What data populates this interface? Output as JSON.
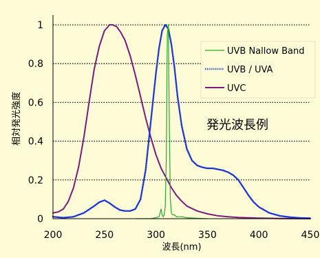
{
  "chart_data": {
    "type": "line",
    "title": "",
    "xlabel": "波長(nm)",
    "ylabel": "相対発光強度",
    "xlim": [
      200,
      450
    ],
    "ylim": [
      0,
      1.05
    ],
    "x_ticks": [
      200,
      250,
      300,
      350,
      400,
      450
    ],
    "y_ticks": [
      0,
      0.2,
      0.4,
      0.6,
      0.8,
      1
    ],
    "x_tick_labels": [
      "200",
      "250",
      "300",
      "350",
      "400",
      "450"
    ],
    "y_tick_labels": [
      "0",
      "0.2",
      "0.4",
      "0.6",
      "0.8",
      "1"
    ],
    "grid": "horizontal dotted",
    "legend_position": "top-right",
    "annotation": "発光波長例",
    "series": [
      {
        "name": "UVB Nallow Band",
        "color": "#2aa82a",
        "style": "solid",
        "x": [
          280,
          295,
          300,
          303,
          305,
          306,
          307,
          308,
          309,
          310,
          311,
          312,
          313,
          314,
          315,
          316,
          318,
          320,
          325,
          330,
          340,
          350
        ],
        "y": [
          0,
          0,
          0.005,
          0.01,
          0.05,
          0.02,
          0.01,
          0.02,
          0.06,
          0.3,
          0.95,
          1.0,
          0.5,
          0.1,
          0.03,
          0.02,
          0.02,
          0.01,
          0.01,
          0.005,
          0.002,
          0
        ]
      },
      {
        "name": "UVB / UVA",
        "color": "#1e36d4",
        "style": "dotted",
        "x": [
          200,
          210,
          220,
          230,
          240,
          245,
          250,
          255,
          260,
          265,
          270,
          275,
          280,
          285,
          290,
          295,
          300,
          303,
          306,
          309,
          312,
          315,
          318,
          321,
          325,
          330,
          335,
          340,
          345,
          350,
          355,
          360,
          365,
          370,
          375,
          380,
          385,
          390,
          395,
          400,
          410,
          420,
          430,
          440,
          450
        ],
        "y": [
          0.01,
          0.005,
          0.01,
          0.03,
          0.065,
          0.085,
          0.095,
          0.08,
          0.06,
          0.045,
          0.04,
          0.04,
          0.05,
          0.1,
          0.25,
          0.5,
          0.75,
          0.88,
          0.97,
          1.0,
          0.98,
          0.9,
          0.78,
          0.63,
          0.48,
          0.36,
          0.3,
          0.275,
          0.265,
          0.26,
          0.26,
          0.255,
          0.25,
          0.24,
          0.225,
          0.2,
          0.16,
          0.12,
          0.085,
          0.06,
          0.03,
          0.015,
          0.008,
          0.004,
          0.002
        ]
      },
      {
        "name": "UVC",
        "color": "#7b1a7b",
        "style": "solid",
        "x": [
          200,
          205,
          210,
          215,
          220,
          225,
          230,
          235,
          240,
          245,
          250,
          255,
          258,
          262,
          266,
          270,
          275,
          280,
          285,
          290,
          295,
          300,
          305,
          310,
          315,
          320,
          325,
          330,
          340,
          350,
          360,
          370,
          380,
          400,
          420,
          450
        ],
        "y": [
          0.03,
          0.035,
          0.05,
          0.09,
          0.16,
          0.27,
          0.42,
          0.6,
          0.77,
          0.89,
          0.97,
          1.0,
          1.0,
          0.99,
          0.96,
          0.92,
          0.84,
          0.74,
          0.63,
          0.52,
          0.42,
          0.33,
          0.26,
          0.21,
          0.16,
          0.12,
          0.09,
          0.065,
          0.04,
          0.025,
          0.015,
          0.01,
          0.006,
          0.003,
          0.001,
          0
        ]
      }
    ]
  }
}
